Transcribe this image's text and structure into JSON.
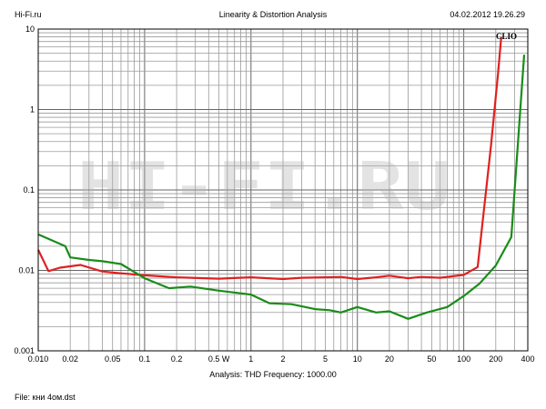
{
  "header": {
    "left": "Hi-Fi.ru",
    "center": "Linearity & Distortion Analysis",
    "right": "04.02.2012 19.26.29"
  },
  "footer": {
    "analysis": "Analysis: THD   Frequency: 1000.00",
    "file": "File: кни 4ом.dst"
  },
  "watermark": "HI-FI.RU",
  "chart_data": {
    "type": "line",
    "brand": "CLIO",
    "x_scale": "log",
    "y_scale": "log",
    "xlim": [
      0.01,
      400
    ],
    "ylim": [
      0.001,
      10
    ],
    "x_ticks": [
      "0.010",
      "0.02",
      "0.05",
      "0.1",
      "0.2",
      "0.5 W",
      "1",
      "2",
      "5",
      "10",
      "20",
      "50",
      "100",
      "200",
      "400"
    ],
    "x_tick_values": [
      0.01,
      0.02,
      0.05,
      0.1,
      0.2,
      0.5,
      1,
      2,
      5,
      10,
      20,
      50,
      100,
      200,
      400
    ],
    "y_ticks": [
      "0.001",
      "0.01",
      "0.1",
      "1",
      "10"
    ],
    "y_tick_values": [
      0.001,
      0.01,
      0.1,
      1,
      10
    ],
    "grid": true,
    "series": [
      {
        "color": "#e02020",
        "x": [
          0.01,
          0.0125,
          0.016,
          0.025,
          0.04,
          0.06,
          0.1,
          0.2,
          0.5,
          1,
          2,
          3,
          5,
          7,
          10,
          15,
          20,
          30,
          40,
          60,
          100,
          135,
          180,
          210,
          225
        ],
        "y": [
          0.018,
          0.0098,
          0.0108,
          0.0117,
          0.0097,
          0.0092,
          0.0087,
          0.0082,
          0.0079,
          0.0082,
          0.0078,
          0.0081,
          0.0082,
          0.0083,
          0.0078,
          0.0082,
          0.0086,
          0.008,
          0.0083,
          0.0081,
          0.0088,
          0.011,
          0.35,
          2.8,
          8.0
        ]
      },
      {
        "color": "#1a8c1a",
        "x": [
          0.01,
          0.018,
          0.02,
          0.03,
          0.04,
          0.06,
          0.1,
          0.17,
          0.27,
          0.5,
          1,
          1.5,
          2.4,
          4,
          5.5,
          7,
          10,
          15,
          20,
          30,
          45,
          70,
          100,
          140,
          200,
          280,
          370
        ],
        "y": [
          0.028,
          0.02,
          0.0145,
          0.0135,
          0.013,
          0.012,
          0.008,
          0.006,
          0.0063,
          0.0056,
          0.005,
          0.0039,
          0.0038,
          0.0033,
          0.0032,
          0.003,
          0.0035,
          0.003,
          0.0031,
          0.0025,
          0.003,
          0.0035,
          0.0048,
          0.0068,
          0.0115,
          0.026,
          4.8
        ]
      }
    ]
  }
}
